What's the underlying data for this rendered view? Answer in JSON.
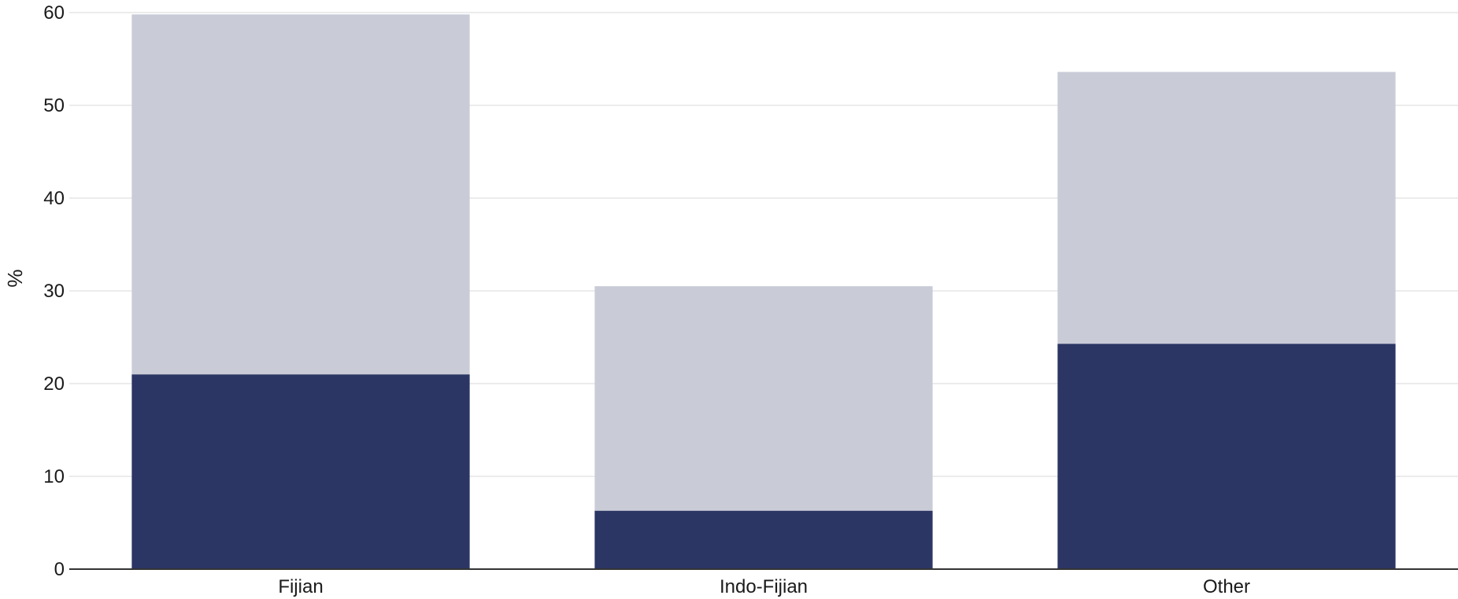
{
  "chart_data": {
    "type": "bar",
    "stacked": true,
    "categories": [
      "Fijian",
      "Indo-Fijian",
      "Other"
    ],
    "series": [
      {
        "color": "#2b3664",
        "values": [
          21.0,
          6.3,
          24.3
        ]
      },
      {
        "color": "#c9cbd7",
        "values": [
          38.8,
          24.2,
          29.3
        ]
      }
    ],
    "title": "",
    "xlabel": "",
    "ylabel": "%",
    "ylim": [
      0,
      60
    ],
    "yticks": [
      0,
      10,
      20,
      30,
      40,
      50,
      60
    ],
    "grid": true,
    "grid_color": "#e6e6e6",
    "axis_color": "#333333"
  }
}
